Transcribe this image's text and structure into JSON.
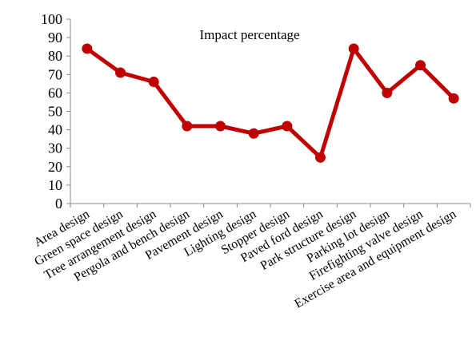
{
  "chart_data": {
    "type": "line",
    "title": "Impact percentage",
    "xlabel": "",
    "ylabel": "",
    "ylim": [
      0,
      100
    ],
    "yticks": [
      0,
      10,
      20,
      30,
      40,
      50,
      60,
      70,
      80,
      90,
      100
    ],
    "grid": false,
    "legend": "none",
    "categories": [
      "Area design",
      "Green space design",
      "Tree arrangement design",
      "Pergola and bench design",
      "Pavement design",
      "Lighting design",
      "Stopper design",
      "Paved ford design",
      "Park structure design",
      "Parking lot design",
      "Firefighting valve design",
      "Exercise area and equipment design"
    ],
    "series": [
      {
        "color": "#c00000",
        "values": [
          84,
          71,
          66,
          42,
          42,
          38,
          42,
          25,
          84,
          60,
          75,
          57
        ]
      }
    ]
  }
}
